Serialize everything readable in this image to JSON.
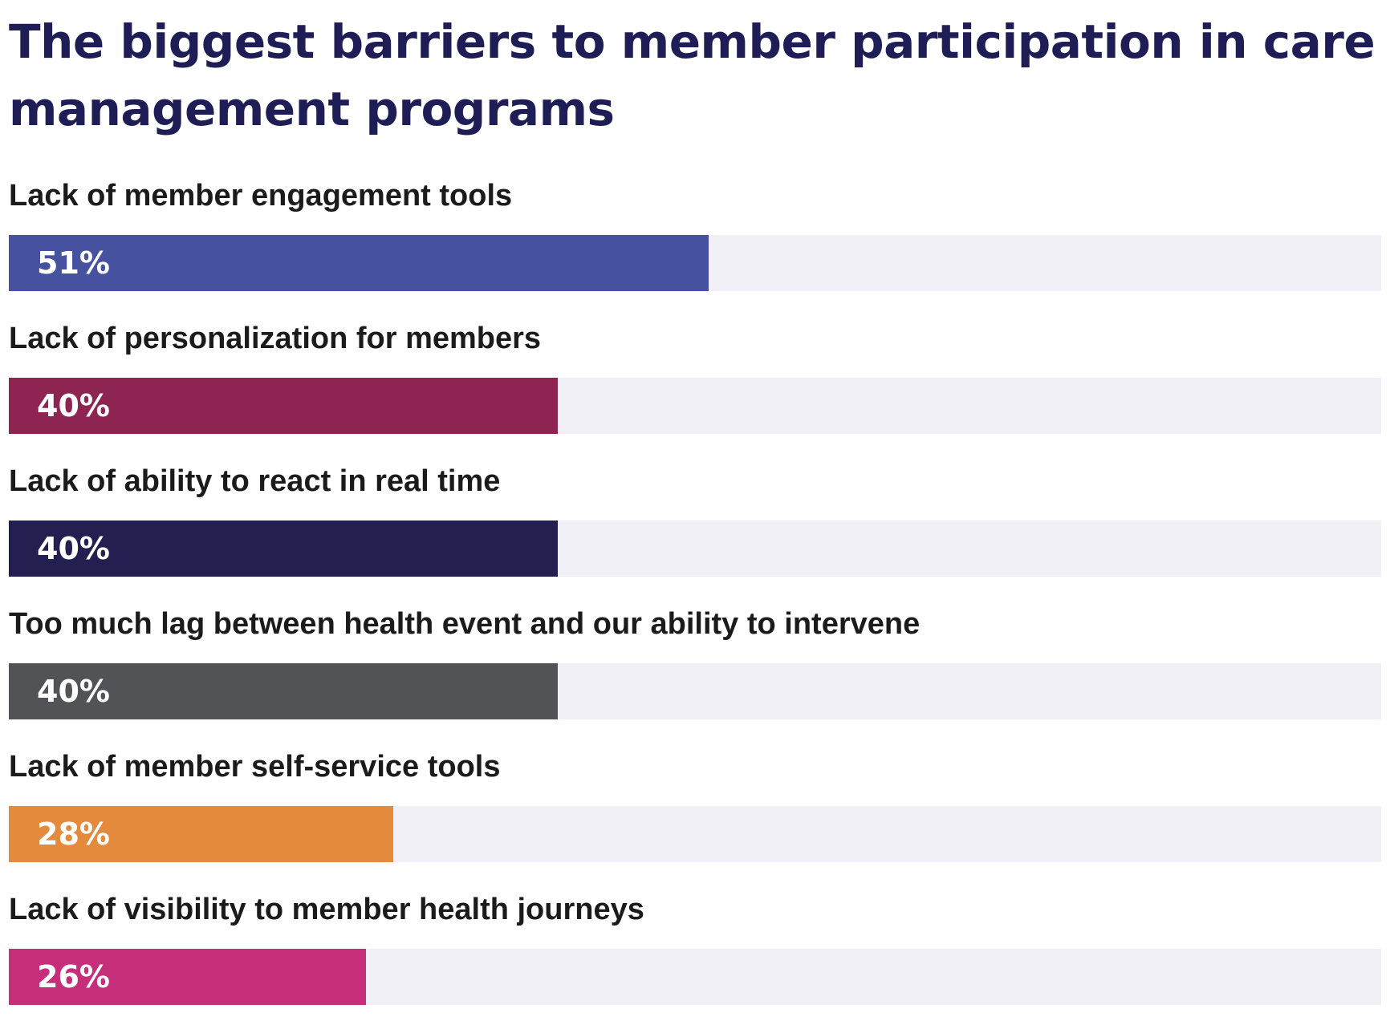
{
  "chart_data": {
    "type": "bar",
    "orientation": "horizontal",
    "title": "The biggest barriers to member participation in care management programs",
    "xlim": [
      0,
      100
    ],
    "grid": false,
    "categories": [
      "Lack of member engagement tools",
      "Lack of personalization for members",
      "Lack of ability to react in real time",
      "Too much lag between health event and our ability to intervene",
      "Lack of member self-service tools",
      "Lack of visibility to member health journeys"
    ],
    "values": [
      51,
      40,
      40,
      40,
      28,
      26
    ],
    "value_labels": [
      "51%",
      "40%",
      "40%",
      "40%",
      "28%",
      "26%"
    ],
    "colors": [
      "#46519f",
      "#8d2452",
      "#231f51",
      "#525357",
      "#e38a3c",
      "#c72e7a"
    ],
    "track_color": "#f1f0f6"
  }
}
